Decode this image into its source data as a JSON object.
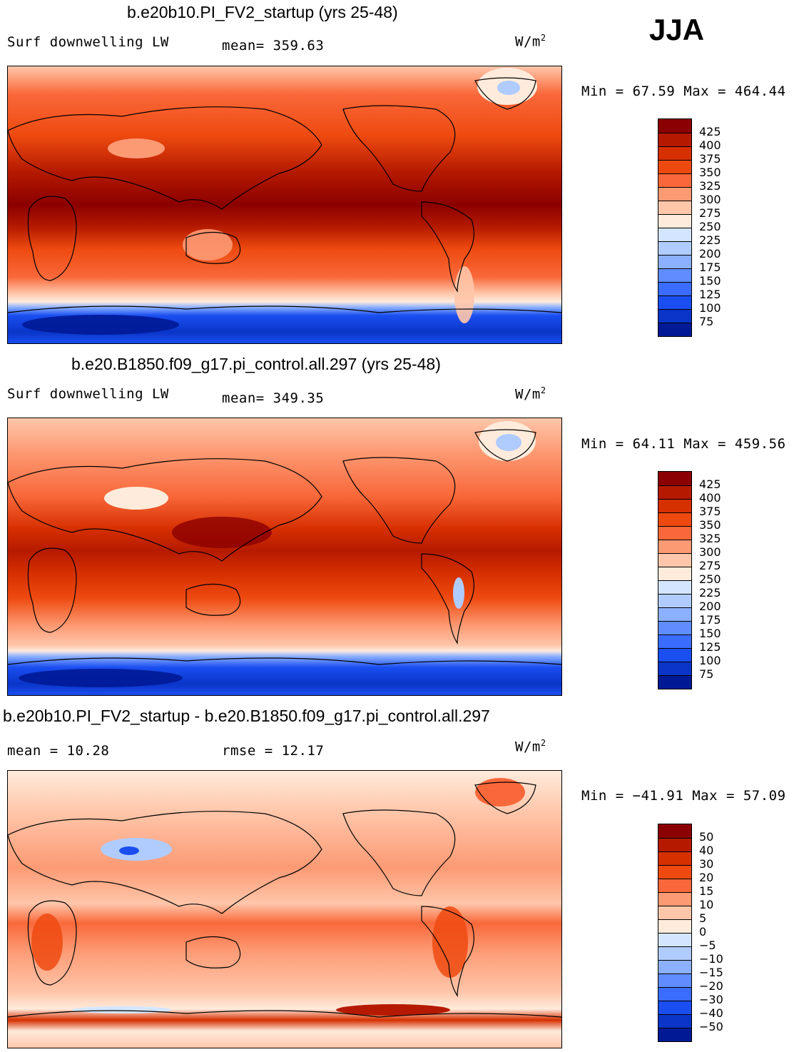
{
  "season": "JJA",
  "panels": [
    {
      "title": "b.e20b10.PI_FV2_startup (yrs 25-48)",
      "left_label": "Surf downwelling LW",
      "center_label": "mean= 359.63",
      "units_base": "W/m",
      "units_exp": "2",
      "minmax": "Min =  67.59 Max = 464.44",
      "colorbar": {
        "colors": [
          "#8b0000",
          "#b51a00",
          "#d62f00",
          "#ee4a10",
          "#f9683a",
          "#fc9a74",
          "#ffc6aa",
          "#ffebdc",
          "#d4e6ff",
          "#b0ccff",
          "#8bb0ff",
          "#5f8dff",
          "#3a6cff",
          "#1a4ef0",
          "#0a35c8",
          "#001a96"
        ],
        "labels": [
          "425",
          "400",
          "375",
          "350",
          "325",
          "300",
          "275",
          "250",
          "225",
          "200",
          "175",
          "150",
          "125",
          "100",
          "75"
        ]
      }
    },
    {
      "title": "b.e20.B1850.f09_g17.pi_control.all.297 (yrs 25-48)",
      "left_label": "Surf downwelling LW",
      "center_label": "mean= 349.35",
      "units_base": "W/m",
      "units_exp": "2",
      "minmax": "Min =  64.11 Max = 459.56",
      "colorbar": {
        "colors": [
          "#8b0000",
          "#b51a00",
          "#d62f00",
          "#ee4a10",
          "#f9683a",
          "#fc9a74",
          "#ffc6aa",
          "#ffebdc",
          "#d4e6ff",
          "#b0ccff",
          "#8bb0ff",
          "#5f8dff",
          "#3a6cff",
          "#1a4ef0",
          "#0a35c8",
          "#001a96"
        ],
        "labels": [
          "425",
          "400",
          "375",
          "350",
          "325",
          "300",
          "275",
          "250",
          "225",
          "200",
          "175",
          "150",
          "125",
          "100",
          "75"
        ]
      }
    },
    {
      "title": "b.e20b10.PI_FV2_startup - b.e20.B1850.f09_g17.pi_control.all.297",
      "left_label": "mean =   10.28",
      "center_label": "rmse =   12.17",
      "units_base": "W/m",
      "units_exp": "2",
      "minmax": "Min = −41.91 Max =  57.09",
      "colorbar": {
        "colors": [
          "#8b0000",
          "#b51a00",
          "#d62f00",
          "#ee4a10",
          "#f9683a",
          "#fc9a74",
          "#ffc6aa",
          "#ffebdc",
          "#d4e6ff",
          "#b0ccff",
          "#8bb0ff",
          "#5f8dff",
          "#3a6cff",
          "#1a4ef0",
          "#0a35c8",
          "#001a96"
        ],
        "labels": [
          "50",
          "40",
          "30",
          "20",
          "15",
          "10",
          "5",
          "0",
          "−5",
          "−10",
          "−15",
          "−20",
          "−30",
          "−40",
          "−50"
        ]
      }
    }
  ]
}
